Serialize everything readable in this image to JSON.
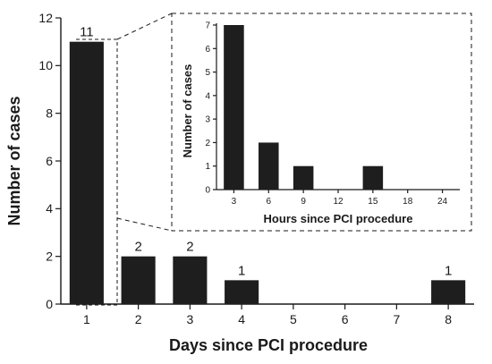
{
  "chart_data": [
    {
      "type": "bar",
      "categories": [
        "1",
        "2",
        "3",
        "4",
        "5",
        "6",
        "7",
        "8"
      ],
      "values": [
        11,
        2,
        2,
        1,
        0,
        0,
        0,
        1
      ],
      "data_labels": [
        "11",
        "2",
        "2",
        "1",
        "",
        "",
        "",
        "1"
      ],
      "xlabel": "Days since PCI  procedure",
      "ylabel": "Number of  cases",
      "ylim": [
        0,
        12
      ],
      "yticks": [
        "0",
        "2",
        "4",
        "6",
        "8",
        "10",
        "12"
      ],
      "grid": false,
      "bar_color": "#1e1e1e"
    },
    {
      "type": "bar",
      "categories": [
        "3",
        "6",
        "9",
        "12",
        "15",
        "18",
        "24"
      ],
      "values": [
        7,
        2,
        1,
        0,
        1,
        0,
        0
      ],
      "xlabel": "Hours since PCI procedure",
      "ylabel": "Number of  cases",
      "ylim": [
        0,
        7
      ],
      "yticks": [
        "0",
        "1",
        "2",
        "3",
        "4",
        "5",
        "6",
        "7"
      ],
      "grid": false,
      "bar_color": "#1e1e1e"
    }
  ]
}
